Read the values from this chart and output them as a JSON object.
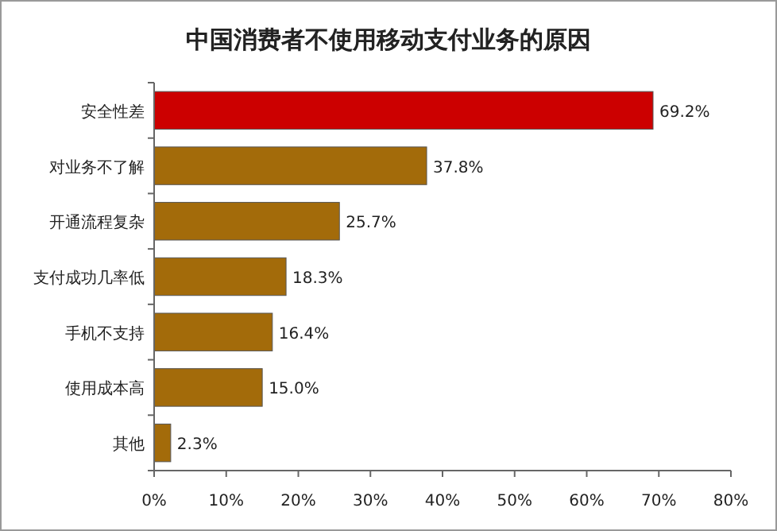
{
  "chart_data": {
    "type": "bar",
    "orientation": "horizontal",
    "title": "中国消费者不使用移动支付业务的原因",
    "categories": [
      "安全性差",
      "对业务不了解",
      "开通流程复杂",
      "支付成功几率低",
      "手机不支持",
      "使用成本高",
      "其他"
    ],
    "values": [
      69.2,
      37.8,
      25.7,
      18.3,
      16.4,
      15.0,
      2.3
    ],
    "value_labels": [
      "69.2%",
      "37.8%",
      "25.7%",
      "18.3%",
      "16.4%",
      "15.0%",
      "2.3%"
    ],
    "colors": [
      "#cc0000",
      "#a36b0a",
      "#a36b0a",
      "#a36b0a",
      "#a36b0a",
      "#a36b0a",
      "#a36b0a"
    ],
    "xlim": [
      0,
      80
    ],
    "xticks": [
      {
        "value": 0,
        "label": "0%"
      },
      {
        "value": 10,
        "label": "10%"
      },
      {
        "value": 20,
        "label": "20%"
      },
      {
        "value": 30,
        "label": "30%"
      },
      {
        "value": 40,
        "label": "40%"
      },
      {
        "value": 50,
        "label": "50%"
      },
      {
        "value": 60,
        "label": "60%"
      },
      {
        "value": 70,
        "label": "70%"
      },
      {
        "value": 80,
        "label": "80%"
      }
    ]
  }
}
